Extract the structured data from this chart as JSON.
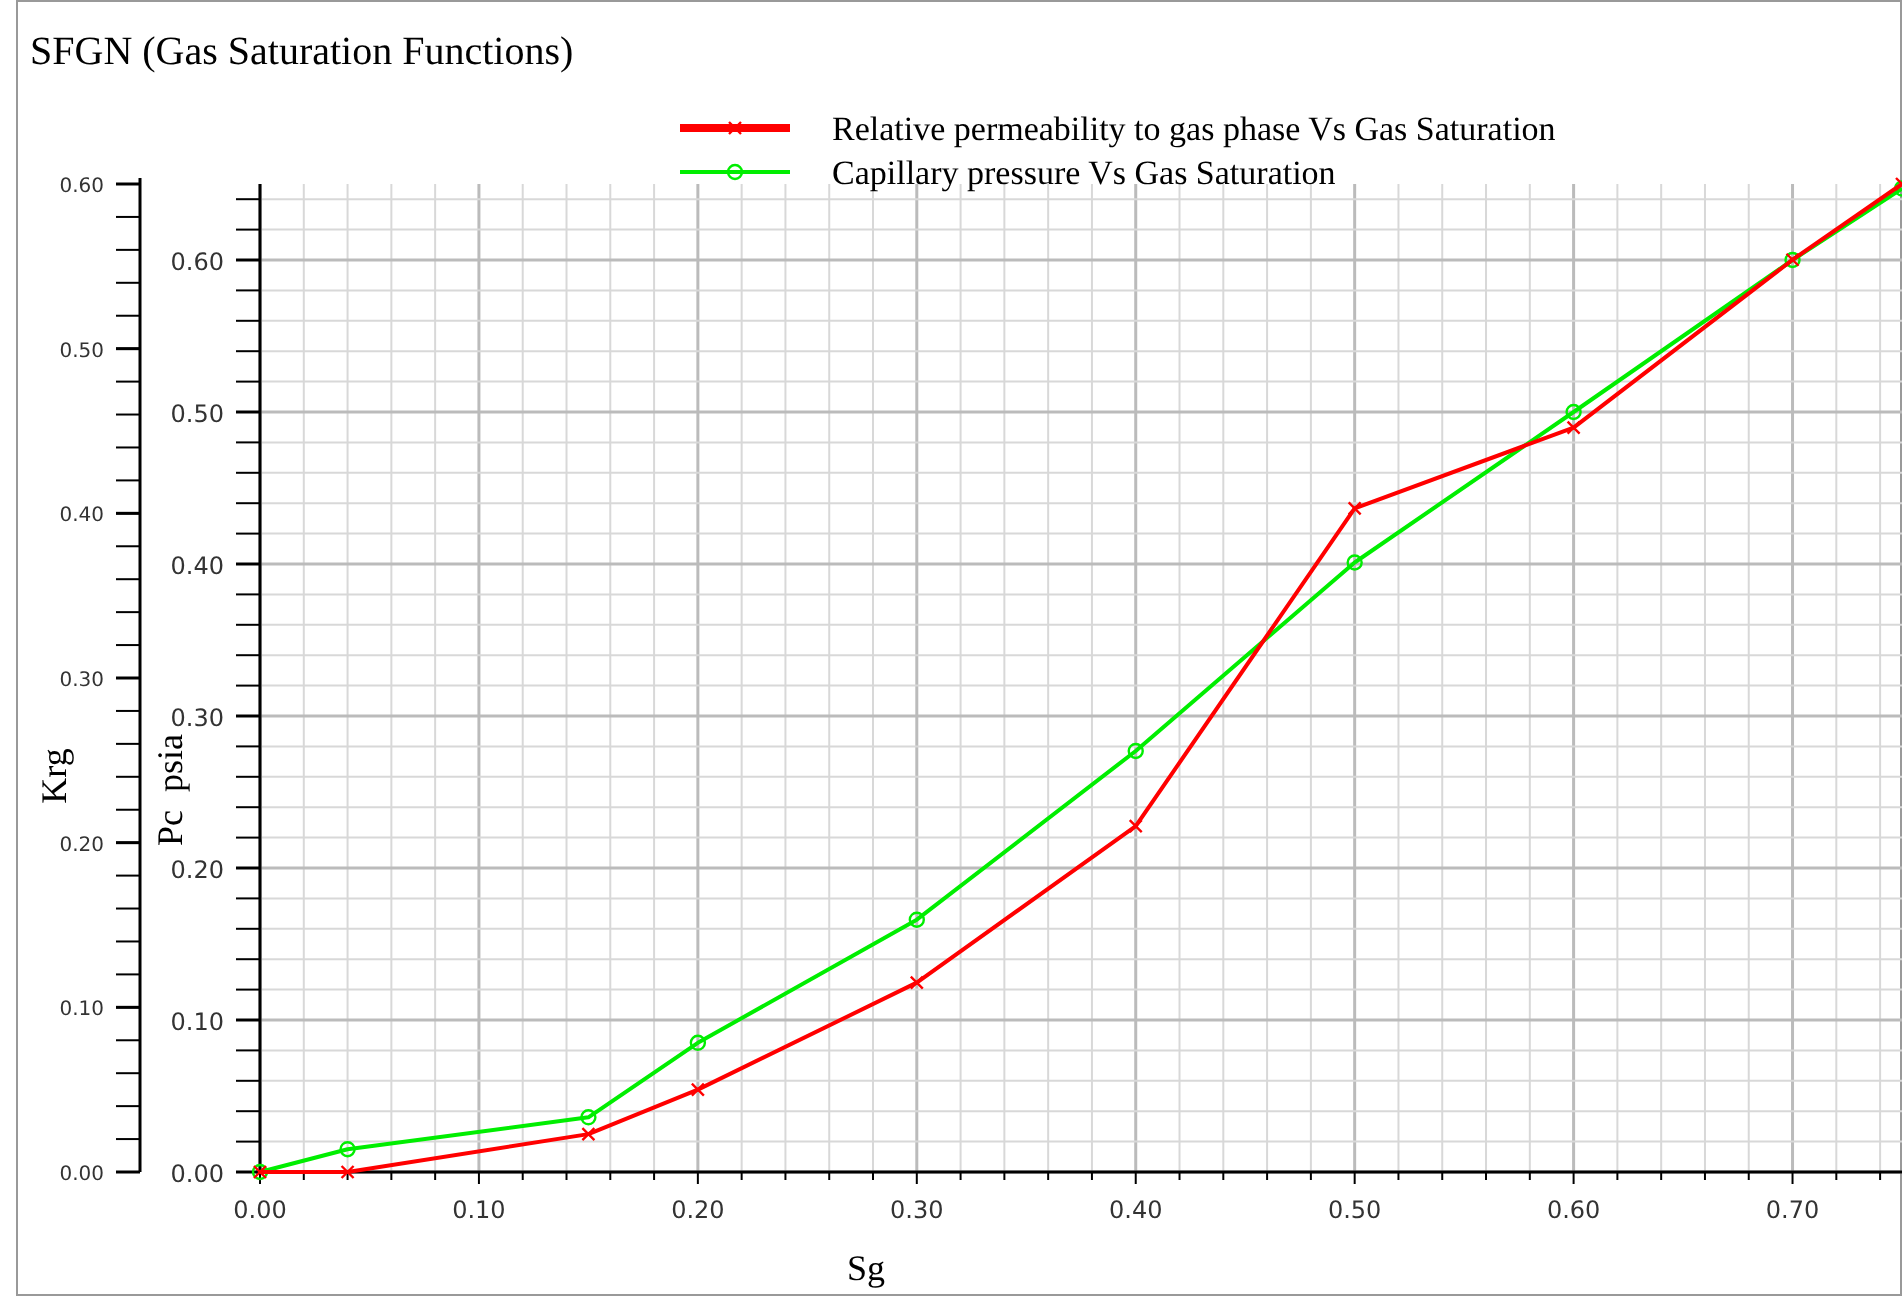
{
  "chart_data": {
    "type": "line",
    "title": "SFGN (Gas Saturation Functions)",
    "xlabel": "Sg",
    "ylabel": "Krg",
    "y2label": "Pc  psia",
    "x": [
      0,
      0.04,
      0.15,
      0.2,
      0.3,
      0.4,
      0.5,
      0.6,
      0.7,
      0.75
    ],
    "series": [
      {
        "name": "Relative permeability to gas phase Vs Gas Saturation",
        "color": "#ff0000",
        "marker": "cross",
        "values": [
          0,
          0,
          0.023,
          0.05,
          0.115,
          0.21,
          0.403,
          0.452,
          0.554,
          0.6
        ]
      },
      {
        "name": "Capillary pressure Vs Gas Saturation",
        "color": "#00ee00",
        "marker": "circle",
        "axis": "y2",
        "values": [
          0,
          0.015,
          0.036,
          0.085,
          0.166,
          0.277,
          0.401,
          0.5,
          0.6,
          0.647
        ]
      }
    ],
    "xlim": [
      0,
      0.75
    ],
    "xticks": [
      {
        "value": 0,
        "label": "0.00"
      },
      {
        "value": 0.02,
        "label": null
      },
      {
        "value": 0.04,
        "label": null
      },
      {
        "value": 0.06,
        "label": null
      },
      {
        "value": 0.08,
        "label": null
      },
      {
        "value": 0.1,
        "label": "0.10"
      },
      {
        "value": 0.12,
        "label": null
      },
      {
        "value": 0.14,
        "label": null
      },
      {
        "value": 0.16,
        "label": null
      },
      {
        "value": 0.18,
        "label": null
      },
      {
        "value": 0.2,
        "label": "0.20"
      },
      {
        "value": 0.22,
        "label": null
      },
      {
        "value": 0.24,
        "label": null
      },
      {
        "value": 0.26,
        "label": null
      },
      {
        "value": 0.28,
        "label": null
      },
      {
        "value": 0.3,
        "label": "0.30"
      },
      {
        "value": 0.32,
        "label": null
      },
      {
        "value": 0.34,
        "label": null
      },
      {
        "value": 0.36,
        "label": null
      },
      {
        "value": 0.38,
        "label": null
      },
      {
        "value": 0.4,
        "label": "0.40"
      },
      {
        "value": 0.42,
        "label": null
      },
      {
        "value": 0.44,
        "label": null
      },
      {
        "value": 0.46,
        "label": null
      },
      {
        "value": 0.48,
        "label": null
      },
      {
        "value": 0.5,
        "label": "0.50"
      },
      {
        "value": 0.52,
        "label": null
      },
      {
        "value": 0.54,
        "label": null
      },
      {
        "value": 0.56,
        "label": null
      },
      {
        "value": 0.58,
        "label": null
      },
      {
        "value": 0.6,
        "label": "0.60"
      },
      {
        "value": 0.62,
        "label": null
      },
      {
        "value": 0.64,
        "label": null
      },
      {
        "value": 0.66,
        "label": null
      },
      {
        "value": 0.68,
        "label": null
      },
      {
        "value": 0.7,
        "label": "0.70"
      },
      {
        "value": 0.72,
        "label": null
      },
      {
        "value": 0.74,
        "label": null
      }
    ],
    "ylim": [
      0,
      0.6
    ],
    "yticks": [
      {
        "value": 0,
        "label": "0.00"
      },
      {
        "value": 0.1,
        "label": "0.10"
      },
      {
        "value": 0.2,
        "label": "0.20"
      },
      {
        "value": 0.3,
        "label": "0.30"
      },
      {
        "value": 0.4,
        "label": "0.40"
      },
      {
        "value": 0.5,
        "label": "0.50"
      },
      {
        "value": 0.6,
        "label": "0.60"
      }
    ],
    "y2lim": [
      0,
      0.65
    ],
    "y2ticks": [
      {
        "value": 0,
        "label": "0.00"
      },
      {
        "value": 0.1,
        "label": "0.10"
      },
      {
        "value": 0.2,
        "label": "0.20"
      },
      {
        "value": 0.3,
        "label": "0.30"
      },
      {
        "value": 0.4,
        "label": "0.40"
      },
      {
        "value": 0.5,
        "label": "0.50"
      },
      {
        "value": 0.6,
        "label": "0.60"
      }
    ],
    "grid": true,
    "legend": "top",
    "line_style": "solid"
  }
}
